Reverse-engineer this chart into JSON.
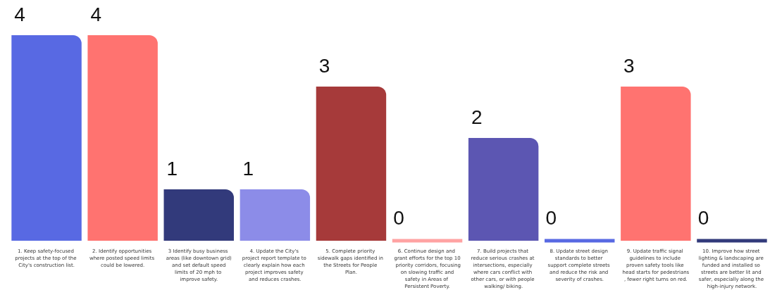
{
  "chart_data": {
    "type": "bar",
    "categories": [
      "1. Keep safety-focused projects at the top of the City's construction list.",
      "2. Identify opportunities where posted speed limits could be lowered.",
      "3 Identify busy business areas (like downtown grid) and set default speed limits of 20 mph to improve safety.",
      "4. Update the City's project report template to clearly explain how each project improves safety and reduces crashes.",
      "5. Complete priority sidewalk gaps identified in the Streets for People Plan.",
      "6. Continue design and grant efforts for the top 10 priority corridors, focusing on slowing traffic and safety in Areas of Persistent Poverty.",
      "7. Build projects that reduce serious crashes at intersections, especially where cars conflict with other cars, or with people walking/ biking.",
      "8. Update street design standards to better support complete streets and reduce the risk and severity of crashes.",
      "9. Update traffic signal guidelines to include proven safety tools like head starts for pedestrians, fewer right turns on red.",
      "10. Improve how street lighting & landscaping are funded and installed so streets are better lit and safer, especially along the high-injury network."
    ],
    "values": [
      4,
      4,
      1,
      1,
      3,
      0,
      2,
      0,
      3,
      0
    ],
    "colors": [
      "#5869e3",
      "#ff7370",
      "#323a7b",
      "#8c8ce8",
      "#a63a3a",
      "#ffa3a3",
      "#5c56b2",
      "#5869e3",
      "#ff7370",
      "#323a7b"
    ],
    "data_labels": true
  }
}
